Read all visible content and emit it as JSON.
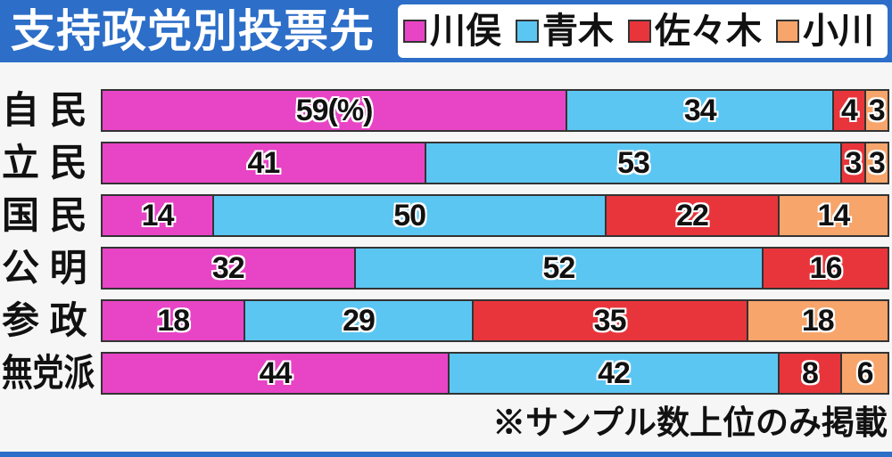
{
  "chart_data": {
    "type": "bar",
    "orientation": "horizontal",
    "stacked": true,
    "title": "支持政党別投票先",
    "categories": [
      "自 民",
      "立 民",
      "国 民",
      "公 明",
      "参 政",
      "無党派"
    ],
    "series": [
      {
        "name": "川俣",
        "color": "#e844c6",
        "values": [
          59,
          41,
          14,
          32,
          18,
          44
        ],
        "labels": [
          "59(%)",
          "41",
          "14",
          "32",
          "18",
          "44"
        ]
      },
      {
        "name": "青木",
        "color": "#5cc6f2",
        "values": [
          34,
          53,
          50,
          52,
          29,
          42
        ],
        "labels": [
          "34",
          "53",
          "50",
          "52",
          "29",
          "42"
        ]
      },
      {
        "name": "佐々木",
        "color": "#e8353b",
        "values": [
          4,
          3,
          22,
          16,
          35,
          8
        ],
        "labels": [
          "4",
          "3",
          "22",
          "16",
          "35",
          "8"
        ]
      },
      {
        "name": "小川",
        "color": "#f7a56b",
        "values": [
          3,
          3,
          14,
          null,
          18,
          6
        ],
        "labels": [
          "3",
          "3",
          "14",
          null,
          "18",
          "6"
        ]
      }
    ],
    "xlim": [
      0,
      100
    ],
    "grid": false,
    "legend_position": "top-right"
  },
  "footnote": "※サンプル数上位のみ掲載",
  "theme": {
    "header_color": "#2c6ec8",
    "background": "#f6f6f6",
    "outline_color": "#333333"
  }
}
